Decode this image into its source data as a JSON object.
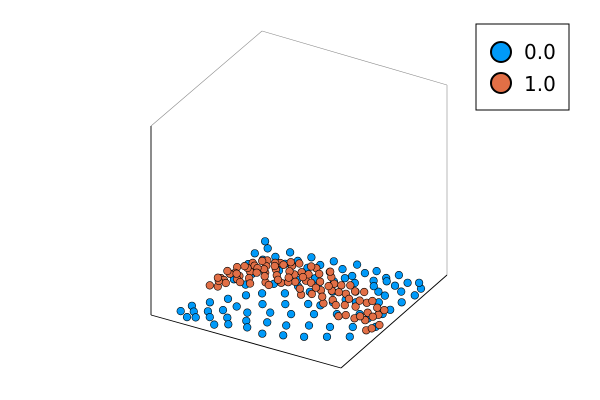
{
  "chart_data": {
    "type": "scatter",
    "title": "",
    "xlabel": "",
    "ylabel": "",
    "zlabel": "",
    "grid": false,
    "ticks": false,
    "legend_position": "top-right",
    "series": [
      {
        "name": "0.0",
        "color": "#009af9",
        "points": [
          [
            0.04,
            0.06
          ],
          [
            0.06,
            0.14
          ],
          [
            0.1,
            0.02
          ],
          [
            0.1,
            0.09
          ],
          [
            0.12,
            0.22
          ],
          [
            0.14,
            0.04
          ],
          [
            0.16,
            0.13
          ],
          [
            0.18,
            0.3
          ],
          [
            0.2,
            0.08
          ],
          [
            0.22,
            0.18
          ],
          [
            0.24,
            0.38
          ],
          [
            0.26,
            0.02
          ],
          [
            0.26,
            0.25
          ],
          [
            0.28,
            0.12
          ],
          [
            0.3,
            0.44
          ],
          [
            0.32,
            0.06
          ],
          [
            0.34,
            0.22
          ],
          [
            0.36,
            0.34
          ],
          [
            0.38,
            0.14
          ],
          [
            0.4,
            0.5
          ],
          [
            0.42,
            0.08
          ],
          [
            0.44,
            0.28
          ],
          [
            0.46,
            0.4
          ],
          [
            0.48,
            0.18
          ],
          [
            0.5,
            0.58
          ],
          [
            0.52,
            0.06
          ],
          [
            0.54,
            0.32
          ],
          [
            0.56,
            0.46
          ],
          [
            0.58,
            0.2
          ],
          [
            0.6,
            0.64
          ],
          [
            0.62,
            0.1
          ],
          [
            0.64,
            0.38
          ],
          [
            0.66,
            0.54
          ],
          [
            0.68,
            0.26
          ],
          [
            0.7,
            0.7
          ],
          [
            0.72,
            0.14
          ],
          [
            0.74,
            0.44
          ],
          [
            0.76,
            0.6
          ],
          [
            0.78,
            0.3
          ],
          [
            0.8,
            0.76
          ],
          [
            0.82,
            0.2
          ],
          [
            0.84,
            0.5
          ],
          [
            0.86,
            0.66
          ],
          [
            0.88,
            0.36
          ],
          [
            0.9,
            0.82
          ],
          [
            0.92,
            0.26
          ],
          [
            0.94,
            0.56
          ],
          [
            0.96,
            0.72
          ],
          [
            0.98,
            0.42
          ],
          [
            0.97,
            0.9
          ],
          [
            0.93,
            0.95
          ],
          [
            0.88,
            0.92
          ],
          [
            0.84,
            0.86
          ],
          [
            0.8,
            0.97
          ],
          [
            0.76,
            0.91
          ],
          [
            0.72,
            0.85
          ],
          [
            0.68,
            0.95
          ],
          [
            0.64,
            0.9
          ],
          [
            0.6,
            0.84
          ],
          [
            0.56,
            0.96
          ],
          [
            0.52,
            0.88
          ],
          [
            0.48,
            0.82
          ],
          [
            0.44,
            0.93
          ],
          [
            0.4,
            0.86
          ],
          [
            0.36,
            0.8
          ],
          [
            0.32,
            0.91
          ],
          [
            0.28,
            0.84
          ],
          [
            0.24,
            0.78
          ],
          [
            0.2,
            0.9
          ],
          [
            0.16,
            0.82
          ],
          [
            0.12,
            0.76
          ],
          [
            0.08,
            0.88
          ],
          [
            0.05,
            0.8
          ],
          [
            0.03,
            0.94
          ],
          [
            0.15,
            0.6
          ],
          [
            0.35,
            0.62
          ],
          [
            0.55,
            0.74
          ],
          [
            0.75,
            0.8
          ],
          [
            0.95,
            0.62
          ],
          [
            0.25,
            0.7
          ],
          [
            0.45,
            0.72
          ],
          [
            0.65,
            0.78
          ],
          [
            0.85,
            0.74
          ],
          [
            0.9,
            0.48
          ],
          [
            0.1,
            0.5
          ],
          [
            0.3,
            0.56
          ],
          [
            0.5,
            0.66
          ],
          [
            0.7,
            0.6
          ],
          [
            0.08,
            0.68
          ],
          [
            0.18,
            0.48
          ],
          [
            0.38,
            0.66
          ],
          [
            0.58,
            0.8
          ],
          [
            0.78,
            0.88
          ],
          [
            0.98,
            0.82
          ],
          [
            0.62,
            0.48
          ],
          [
            0.42,
            0.6
          ]
        ]
      },
      {
        "name": "1.0",
        "color": "#e26f46",
        "points": [
          [
            0.05,
            0.34
          ],
          [
            0.07,
            0.42
          ],
          [
            0.09,
            0.55
          ],
          [
            0.11,
            0.38
          ],
          [
            0.13,
            0.46
          ],
          [
            0.15,
            0.33
          ],
          [
            0.17,
            0.57
          ],
          [
            0.19,
            0.4
          ],
          [
            0.21,
            0.52
          ],
          [
            0.23,
            0.44
          ],
          [
            0.25,
            0.58
          ],
          [
            0.27,
            0.36
          ],
          [
            0.29,
            0.5
          ],
          [
            0.31,
            0.3
          ],
          [
            0.33,
            0.42
          ],
          [
            0.35,
            0.54
          ],
          [
            0.37,
            0.46
          ],
          [
            0.39,
            0.32
          ],
          [
            0.41,
            0.4
          ],
          [
            0.43,
            0.52
          ],
          [
            0.45,
            0.56
          ],
          [
            0.47,
            0.34
          ],
          [
            0.49,
            0.44
          ],
          [
            0.51,
            0.48
          ],
          [
            0.53,
            0.38
          ],
          [
            0.55,
            0.56
          ],
          [
            0.57,
            0.42
          ],
          [
            0.59,
            0.52
          ],
          [
            0.61,
            0.3
          ],
          [
            0.63,
            0.46
          ],
          [
            0.65,
            0.34
          ],
          [
            0.67,
            0.4
          ],
          [
            0.69,
            0.5
          ],
          [
            0.71,
            0.44
          ],
          [
            0.73,
            0.32
          ],
          [
            0.75,
            0.38
          ],
          [
            0.77,
            0.48
          ],
          [
            0.79,
            0.54
          ],
          [
            0.81,
            0.4
          ],
          [
            0.83,
            0.3
          ],
          [
            0.85,
            0.44
          ],
          [
            0.87,
            0.52
          ],
          [
            0.89,
            0.36
          ],
          [
            0.91,
            0.46
          ],
          [
            0.93,
            0.4
          ],
          [
            0.95,
            0.5
          ],
          [
            0.97,
            0.34
          ],
          [
            0.99,
            0.44
          ],
          [
            0.1,
            0.46
          ],
          [
            0.2,
            0.36
          ],
          [
            0.3,
            0.46
          ],
          [
            0.4,
            0.56
          ],
          [
            0.5,
            0.36
          ],
          [
            0.6,
            0.42
          ],
          [
            0.7,
            0.36
          ],
          [
            0.8,
            0.46
          ],
          [
            0.9,
            0.4
          ],
          [
            0.05,
            0.52
          ],
          [
            0.15,
            0.44
          ],
          [
            0.25,
            0.48
          ],
          [
            0.35,
            0.38
          ],
          [
            0.45,
            0.46
          ],
          [
            0.55,
            0.48
          ],
          [
            0.65,
            0.54
          ],
          [
            0.75,
            0.56
          ],
          [
            0.85,
            0.34
          ],
          [
            0.95,
            0.56
          ],
          [
            0.12,
            0.3
          ],
          [
            0.22,
            0.58
          ],
          [
            0.32,
            0.54
          ],
          [
            0.42,
            0.3
          ],
          [
            0.52,
            0.56
          ],
          [
            0.62,
            0.58
          ],
          [
            0.72,
            0.52
          ],
          [
            0.82,
            0.58
          ],
          [
            0.92,
            0.54
          ],
          [
            0.18,
            0.5
          ],
          [
            0.28,
            0.42
          ],
          [
            0.38,
            0.52
          ],
          [
            0.48,
            0.4
          ],
          [
            0.58,
            0.34
          ],
          [
            0.68,
            0.46
          ],
          [
            0.78,
            0.36
          ],
          [
            0.88,
            0.56
          ],
          [
            0.98,
            0.38
          ],
          [
            0.08,
            0.38
          ],
          [
            0.14,
            0.54
          ],
          [
            0.24,
            0.32
          ],
          [
            0.34,
            0.5
          ],
          [
            0.44,
            0.36
          ],
          [
            0.54,
            0.44
          ],
          [
            0.64,
            0.4
          ],
          [
            0.74,
            0.46
          ],
          [
            0.84,
            0.5
          ],
          [
            0.94,
            0.46
          ],
          [
            0.04,
            0.44
          ]
        ]
      }
    ]
  }
}
